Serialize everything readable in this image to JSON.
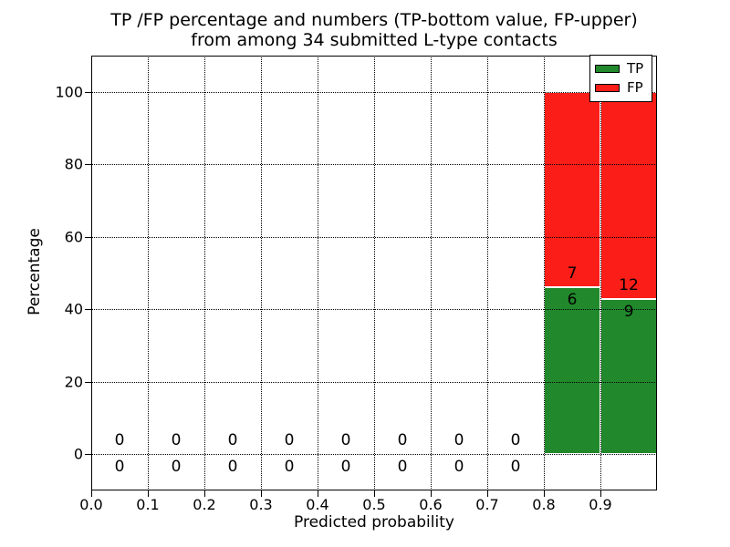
{
  "chart_data": {
    "type": "bar",
    "stacked": true,
    "title_line1": "TP /FP percentage and numbers (TP-bottom value, FP-upper)",
    "title_line2": "from among 34 submitted L-type contacts",
    "xlabel": "Predicted probability",
    "ylabel": "Percentage",
    "xlim": [
      0.0,
      1.0
    ],
    "ylim": [
      -10,
      110
    ],
    "x_ticks": [
      0.0,
      0.1,
      0.2,
      0.3,
      0.4,
      0.5,
      0.6,
      0.7,
      0.8,
      0.9
    ],
    "x_tick_labels": [
      "0.0",
      "0.1",
      "0.2",
      "0.3",
      "0.4",
      "0.5",
      "0.6",
      "0.7",
      "0.8",
      "0.9"
    ],
    "y_ticks": [
      0,
      20,
      40,
      60,
      80,
      100
    ],
    "y_tick_labels": [
      "0",
      "20",
      "40",
      "60",
      "80",
      "100"
    ],
    "grid": "dotted",
    "total_contacts": 34,
    "colors": {
      "tp": "#21892b",
      "fp": "#fa1d18"
    },
    "legend": {
      "position": "upper right",
      "entries": [
        {
          "label": "TP",
          "color": "#21892b"
        },
        {
          "label": "FP",
          "color": "#fa1d18"
        }
      ]
    },
    "bins": [
      {
        "x_start": 0.0,
        "x_end": 0.1,
        "tp_count": 0,
        "fp_count": 0,
        "tp_pct": 0,
        "fp_pct": 0
      },
      {
        "x_start": 0.1,
        "x_end": 0.2,
        "tp_count": 0,
        "fp_count": 0,
        "tp_pct": 0,
        "fp_pct": 0
      },
      {
        "x_start": 0.2,
        "x_end": 0.3,
        "tp_count": 0,
        "fp_count": 0,
        "tp_pct": 0,
        "fp_pct": 0
      },
      {
        "x_start": 0.3,
        "x_end": 0.4,
        "tp_count": 0,
        "fp_count": 0,
        "tp_pct": 0,
        "fp_pct": 0
      },
      {
        "x_start": 0.4,
        "x_end": 0.5,
        "tp_count": 0,
        "fp_count": 0,
        "tp_pct": 0,
        "fp_pct": 0
      },
      {
        "x_start": 0.5,
        "x_end": 0.6,
        "tp_count": 0,
        "fp_count": 0,
        "tp_pct": 0,
        "fp_pct": 0
      },
      {
        "x_start": 0.6,
        "x_end": 0.7,
        "tp_count": 0,
        "fp_count": 0,
        "tp_pct": 0,
        "fp_pct": 0
      },
      {
        "x_start": 0.7,
        "x_end": 0.8,
        "tp_count": 0,
        "fp_count": 0,
        "tp_pct": 0,
        "fp_pct": 0
      },
      {
        "x_start": 0.8,
        "x_end": 0.9,
        "tp_count": 6,
        "fp_count": 7,
        "tp_pct": 46.15,
        "fp_pct": 53.85
      },
      {
        "x_start": 0.9,
        "x_end": 1.0,
        "tp_count": 9,
        "fp_count": 12,
        "tp_pct": 42.86,
        "fp_pct": 57.14
      }
    ]
  }
}
